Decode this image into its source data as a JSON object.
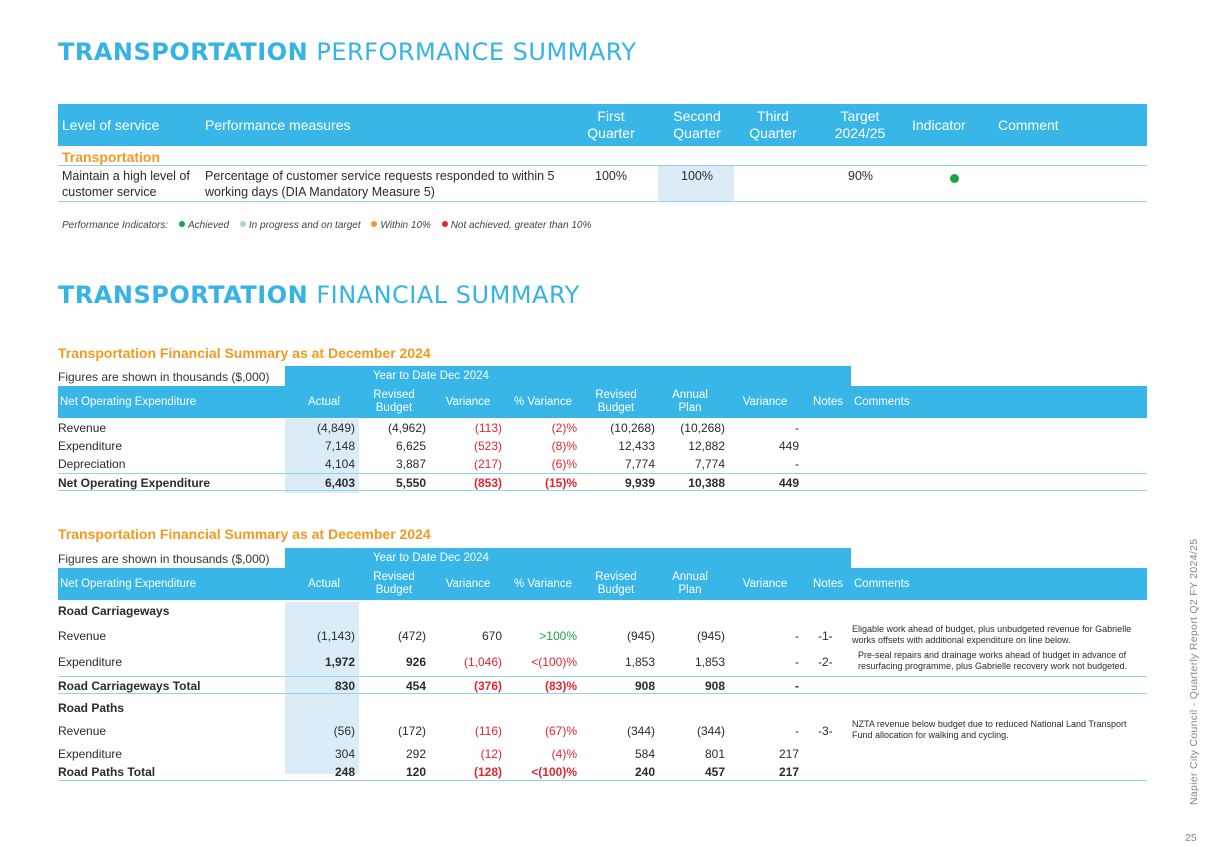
{
  "performance": {
    "title_bold": "TRANSPORTATION",
    "title_light": "PERFORMANCE SUMMARY",
    "headers": {
      "level": "Level of service",
      "measures": "Performance measures",
      "q1": "First Quarter",
      "q2": "Second Quarter",
      "q3": "Third Quarter",
      "target": "Target 2024/25",
      "indicator": "Indicator",
      "comment": "Comment"
    },
    "category": "Transportation",
    "row": {
      "level": "Maintain a high level of customer service",
      "measure": "Percentage of customer service requests responded to within 5 working days (DIA Mandatory Measure 5)",
      "q1": "100%",
      "q2": "100%",
      "q3": "",
      "target": "90%",
      "indicator_color": "#1aa34a",
      "comment": ""
    },
    "legend": {
      "label": "Performance Indicators:",
      "items": [
        {
          "text": "Achieved",
          "color": "#1aa34a"
        },
        {
          "text": "In progress and on target",
          "color": "#a8dcb0"
        },
        {
          "text": "Within 10%",
          "color": "#f39a1e"
        },
        {
          "text": "Not achieved, greater than 10%",
          "color": "#e0262f"
        }
      ]
    }
  },
  "financial": {
    "title_bold": "TRANSPORTATION",
    "title_light": "FINANCIAL SUMMARY",
    "table1": {
      "title": "Transportation Financial Summary as at December 2024",
      "figures_note": "Figures are shown in thousands ($,000)",
      "ytd_label": "Year to Date  Dec 2024",
      "headers": {
        "name": "Net Operating Expenditure",
        "actual": "Actual",
        "revised_budget": "Revised Budget",
        "variance": "Variance",
        "pct_variance": "% Variance",
        "annual_revised_budget": "Revised Budget",
        "annual_plan": "Annual Plan",
        "annual_variance": "Variance",
        "notes": "Notes",
        "comments": "Comments"
      },
      "rows": [
        {
          "name": "Revenue",
          "actual": "(4,849)",
          "revised_budget": "(4,962)",
          "variance": "(113)",
          "pct_variance": "(2)%",
          "annual_revised_budget": "(10,268)",
          "annual_plan": "(10,268)",
          "annual_variance": "-",
          "notes": "",
          "comment": ""
        },
        {
          "name": "Expenditure",
          "actual": "7,148",
          "revised_budget": "6,625",
          "variance": "(523)",
          "pct_variance": "(8)%",
          "annual_revised_budget": "12,433",
          "annual_plan": "12,882",
          "annual_variance": "449",
          "notes": "",
          "comment": ""
        },
        {
          "name": "Depreciation",
          "actual": "4,104",
          "revised_budget": "3,887",
          "variance": "(217)",
          "pct_variance": "(6)%",
          "annual_revised_budget": "7,774",
          "annual_plan": "7,774",
          "annual_variance": "-",
          "notes": "",
          "comment": ""
        }
      ],
      "total": {
        "name": "Net Operating Expenditure",
        "actual": "6,403",
        "revised_budget": "5,550",
        "variance": "(853)",
        "pct_variance": "(15)%",
        "annual_revised_budget": "9,939",
        "annual_plan": "10,388",
        "annual_variance": "449"
      }
    },
    "table2": {
      "title": "Transportation Financial Summary as at December 2024",
      "figures_note": "Figures are shown in thousands ($,000)",
      "ytd_label": "Year to Date  Dec 2024",
      "headers": {
        "name": "Net Operating Expenditure",
        "actual": "Actual",
        "revised_budget": "Revised Budget",
        "variance": "Variance",
        "pct_variance": "% Variance",
        "annual_revised_budget": "Revised Budget",
        "annual_plan": "Annual Plan",
        "annual_variance": "Variance",
        "notes": "Notes",
        "comments": "Comments"
      },
      "group1": {
        "name": "Road Carriageways",
        "rows": [
          {
            "name": "Revenue",
            "actual": "(1,143)",
            "revised_budget": "(472)",
            "variance": "670",
            "pct_variance": ">100%",
            "annual_revised_budget": "(945)",
            "annual_plan": "(945)",
            "annual_variance": "-",
            "notes": "-1-",
            "comment": "Eligable work ahead of budget, plus unbudgeted revenue for Gabrielle works offsets with additional expenditure on line below."
          },
          {
            "name": "Expenditure",
            "actual": "1,972",
            "revised_budget": "926",
            "variance": "(1,046)",
            "pct_variance": "<(100)%",
            "annual_revised_budget": "1,853",
            "annual_plan": "1,853",
            "annual_variance": "-",
            "notes": "-2-",
            "comment": "Pre-seal repairs and drainage works ahead of budget in advance of resurfacing programme, plus Gabrielle recovery work not budgeted."
          }
        ],
        "total": {
          "name": "Road Carriageways Total",
          "actual": "830",
          "revised_budget": "454",
          "variance": "(376)",
          "pct_variance": "(83)%",
          "annual_revised_budget": "908",
          "annual_plan": "908",
          "annual_variance": "-"
        }
      },
      "group2": {
        "name": "Road Paths",
        "rows": [
          {
            "name": "Revenue",
            "actual": "(56)",
            "revised_budget": "(172)",
            "variance": "(116)",
            "pct_variance": "(67)%",
            "annual_revised_budget": "(344)",
            "annual_plan": "(344)",
            "annual_variance": "-",
            "notes": "-3-",
            "comment": "NZTA revenue below budget due to reduced National Land Transport Fund allocation for walking and cycling."
          },
          {
            "name": "Expenditure",
            "actual": "304",
            "revised_budget": "292",
            "variance": "(12)",
            "pct_variance": "(4)%",
            "annual_revised_budget": "584",
            "annual_plan": "801",
            "annual_variance": "217",
            "notes": "",
            "comment": ""
          }
        ],
        "total": {
          "name": "Road Paths Total",
          "actual": "248",
          "revised_budget": "120",
          "variance": "(128)",
          "pct_variance": "<(100)%",
          "annual_revised_budget": "240",
          "annual_plan": "457",
          "annual_variance": "217"
        }
      }
    }
  },
  "footer": {
    "side_text": "Napier City Council - Quarterly Report Q2 FY 2024/25",
    "page_number": "25"
  }
}
